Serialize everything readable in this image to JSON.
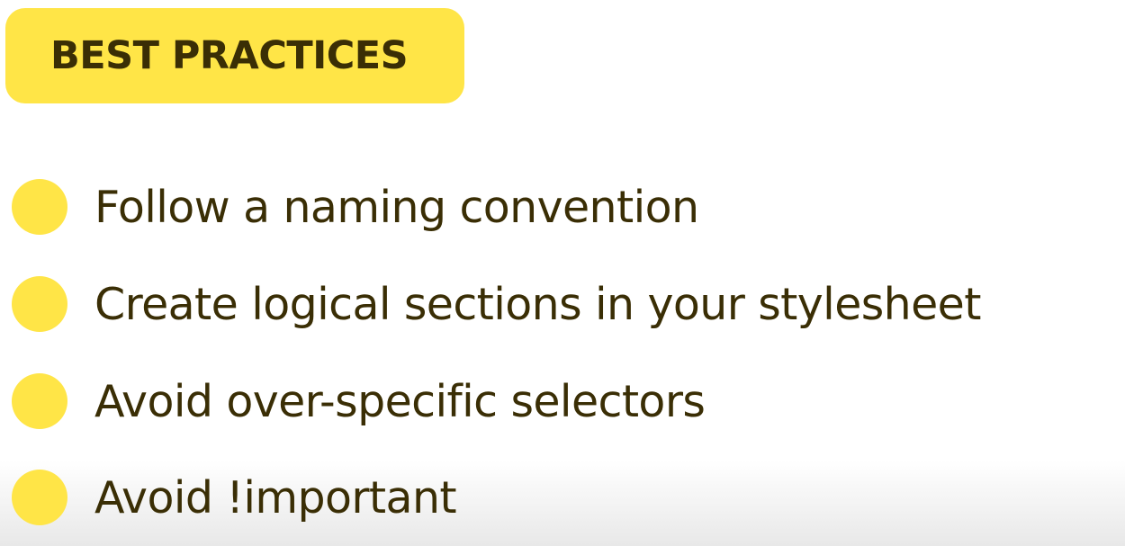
{
  "header": {
    "title": "BEST PRACTICES"
  },
  "list": {
    "items": [
      {
        "text": "Follow a naming convention"
      },
      {
        "text": "Create logical sections in your stylesheet"
      },
      {
        "text": "Avoid over-specific selectors"
      },
      {
        "text": "Avoid !important"
      }
    ]
  },
  "colors": {
    "accent": "#FFE547",
    "text": "#3A2E05",
    "background": "#FFFFFF"
  }
}
